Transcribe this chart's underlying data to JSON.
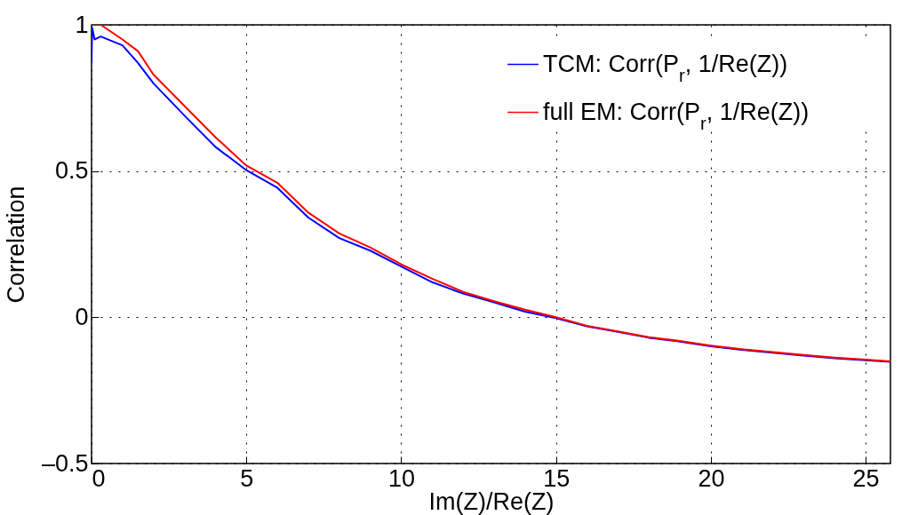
{
  "chart_data": {
    "type": "line",
    "xlabel": "Im(Z)/Re(Z)",
    "ylabel": "Correlation",
    "x": [
      0,
      0.02,
      0.1,
      0.3,
      1,
      1.5,
      2,
      3,
      4,
      5,
      6,
      7,
      8,
      9,
      10,
      11,
      12,
      13,
      14,
      15,
      16,
      17,
      18,
      19,
      20,
      21,
      22,
      23,
      24,
      25,
      25.8
    ],
    "series": [
      {
        "name": "TCM: Corr(P$_{r}$, 1/Re(Z))",
        "color": "#0000ff",
        "values": [
          0.87,
          0.99,
          0.95,
          0.96,
          0.93,
          0.87,
          0.8,
          0.69,
          0.583,
          0.503,
          0.443,
          0.341,
          0.271,
          0.228,
          0.174,
          0.12,
          0.081,
          0.051,
          0.019,
          -0.003,
          -0.031,
          -0.05,
          -0.07,
          -0.083,
          -0.099,
          -0.111,
          -0.121,
          -0.131,
          -0.14,
          -0.147,
          -0.152
        ]
      },
      {
        "name": "full EM: Corr(P$_{r}$, 1/Re(Z))",
        "color": "#ff0000",
        "values": [
          1.0,
          1.0,
          1.0,
          1.0,
          0.95,
          0.91,
          0.83,
          0.723,
          0.616,
          0.519,
          0.46,
          0.358,
          0.287,
          0.239,
          0.181,
          0.132,
          0.087,
          0.055,
          0.026,
          0.0,
          -0.029,
          -0.048,
          -0.068,
          -0.081,
          -0.097,
          -0.109,
          -0.119,
          -0.129,
          -0.138,
          -0.145,
          -0.151
        ]
      }
    ],
    "xlim": [
      0,
      25.8
    ],
    "xticks": [
      0,
      5,
      10,
      15,
      20,
      25
    ],
    "ylim": [
      -0.5,
      1
    ],
    "yticks": [
      {
        "value": -0.5,
        "label": "–0.5"
      },
      0,
      0.5,
      1
    ],
    "grid": true,
    "legend": "top right",
    "line_style": "solid",
    "marker": "none"
  }
}
